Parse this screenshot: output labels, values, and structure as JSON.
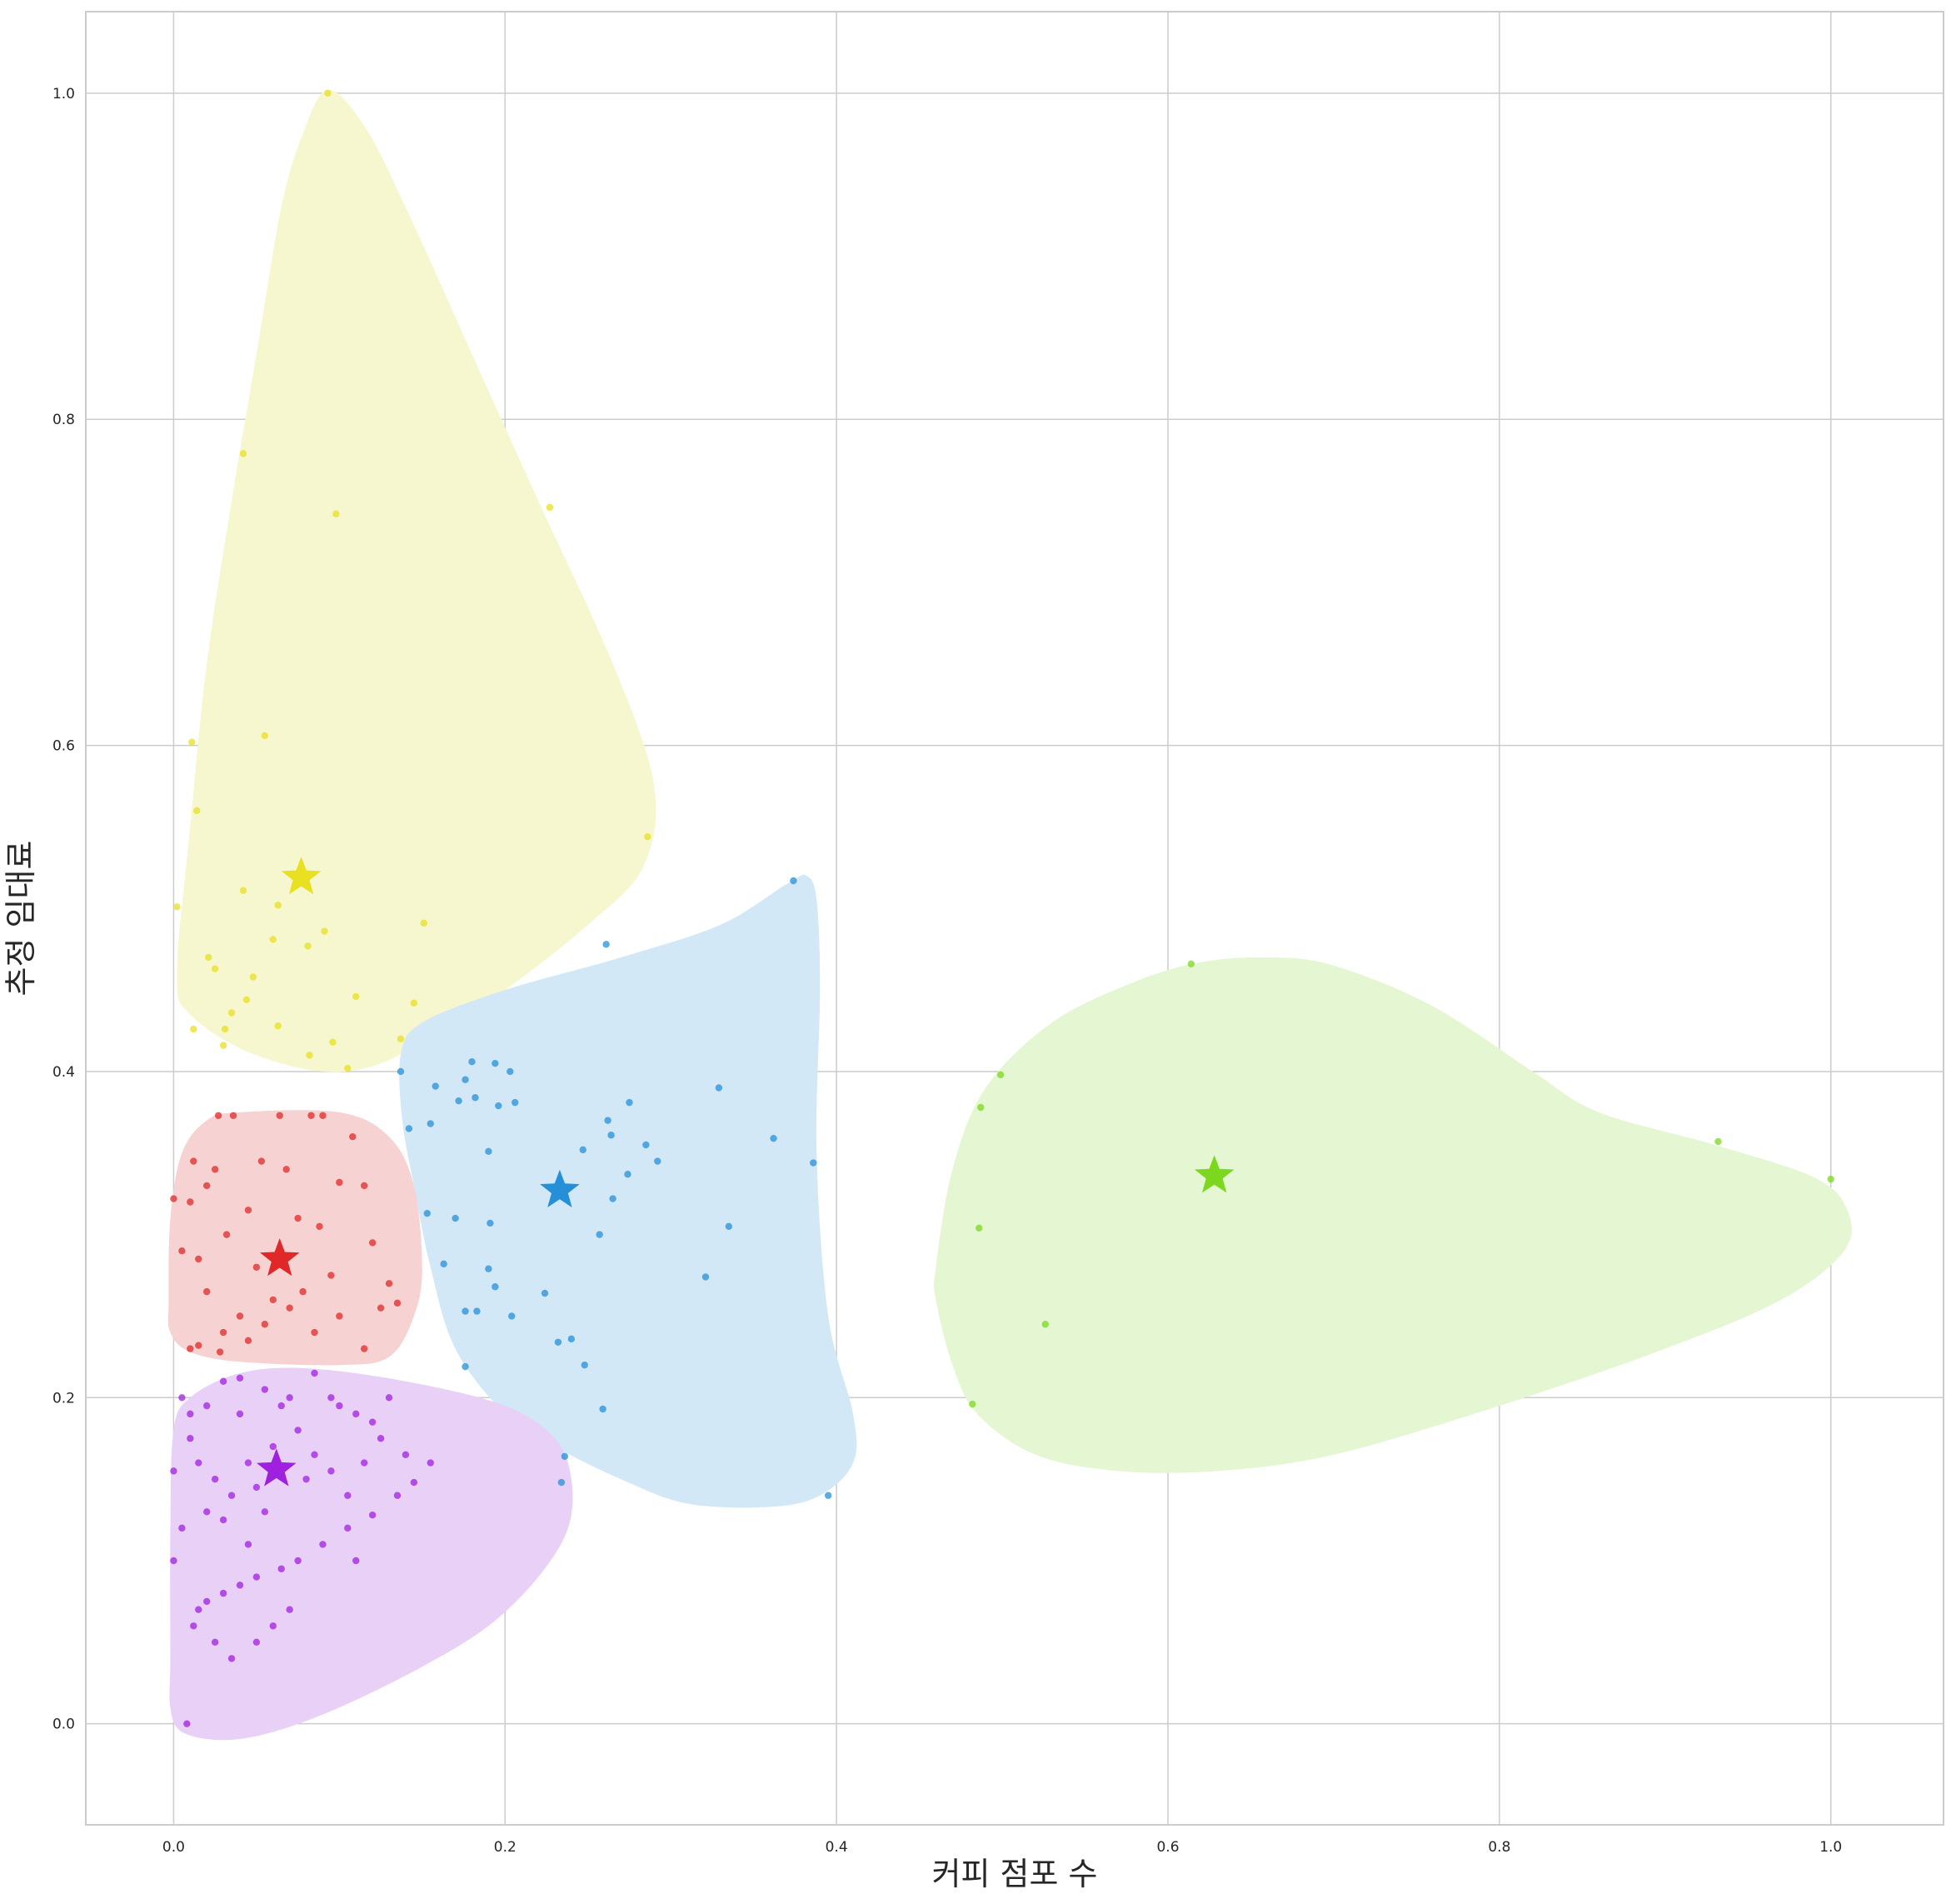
{
  "chart_data": {
    "type": "scatter",
    "title": "",
    "xlabel": "커피 점포 수",
    "ylabel": "추정 임대료",
    "xlim": [
      -0.053,
      1.068
    ],
    "ylim": [
      -0.062,
      1.05
    ],
    "x_ticks": [
      0.0,
      0.2,
      0.4,
      0.6,
      0.8,
      1.0
    ],
    "y_ticks": [
      0.0,
      0.2,
      0.4,
      0.6,
      0.8,
      1.0
    ],
    "x_tick_labels": [
      "0.0",
      "0.2",
      "0.4",
      "0.6",
      "0.8",
      "1.0"
    ],
    "y_tick_labels": [
      "0.0",
      "0.2",
      "0.4",
      "0.6",
      "0.8",
      "1.0"
    ],
    "grid": true,
    "legend": "none",
    "clusters": [
      {
        "color": "#e8e020",
        "fill": "#f6f7ce",
        "centroid": [
          0.077,
          0.519
        ],
        "hull": [
          [
            0.002,
            0.46
          ],
          [
            0.01,
            0.55
          ],
          [
            0.02,
            0.65
          ],
          [
            0.035,
            0.75
          ],
          [
            0.05,
            0.84
          ],
          [
            0.065,
            0.93
          ],
          [
            0.078,
            0.975
          ],
          [
            0.093,
            1.002
          ],
          [
            0.115,
            0.98
          ],
          [
            0.14,
            0.93
          ],
          [
            0.18,
            0.84
          ],
          [
            0.22,
            0.75
          ],
          [
            0.265,
            0.65
          ],
          [
            0.29,
            0.575
          ],
          [
            0.283,
            0.525
          ],
          [
            0.25,
            0.49
          ],
          [
            0.2,
            0.45
          ],
          [
            0.16,
            0.425
          ],
          [
            0.125,
            0.405
          ],
          [
            0.09,
            0.4
          ],
          [
            0.045,
            0.412
          ],
          [
            0.01,
            0.435
          ]
        ],
        "points": [
          [
            0.093,
            1.0
          ],
          [
            0.042,
            0.779
          ],
          [
            0.098,
            0.742
          ],
          [
            0.227,
            0.746
          ],
          [
            0.011,
            0.602
          ],
          [
            0.055,
            0.606
          ],
          [
            0.014,
            0.56
          ],
          [
            0.286,
            0.544
          ],
          [
            0.002,
            0.501
          ],
          [
            0.042,
            0.511
          ],
          [
            0.063,
            0.502
          ],
          [
            0.021,
            0.47
          ],
          [
            0.06,
            0.481
          ],
          [
            0.081,
            0.477
          ],
          [
            0.091,
            0.486
          ],
          [
            0.151,
            0.491
          ],
          [
            0.025,
            0.463
          ],
          [
            0.048,
            0.458
          ],
          [
            0.035,
            0.436
          ],
          [
            0.044,
            0.444
          ],
          [
            0.11,
            0.446
          ],
          [
            0.145,
            0.442
          ],
          [
            0.012,
            0.426
          ],
          [
            0.031,
            0.426
          ],
          [
            0.063,
            0.428
          ],
          [
            0.03,
            0.416
          ],
          [
            0.096,
            0.418
          ],
          [
            0.137,
            0.42
          ],
          [
            0.082,
            0.41
          ],
          [
            0.105,
            0.402
          ]
        ]
      },
      {
        "color": "#2590d8",
        "fill": "#d2e8f6",
        "centroid": [
          0.233,
          0.327
        ],
        "hull": [
          [
            0.137,
            0.41
          ],
          [
            0.15,
            0.43
          ],
          [
            0.2,
            0.45
          ],
          [
            0.27,
            0.47
          ],
          [
            0.33,
            0.49
          ],
          [
            0.37,
            0.515
          ],
          [
            0.382,
            0.52
          ],
          [
            0.388,
            0.505
          ],
          [
            0.39,
            0.45
          ],
          [
            0.388,
            0.35
          ],
          [
            0.395,
            0.25
          ],
          [
            0.41,
            0.19
          ],
          [
            0.41,
            0.16
          ],
          [
            0.39,
            0.14
          ],
          [
            0.36,
            0.133
          ],
          [
            0.31,
            0.135
          ],
          [
            0.27,
            0.15
          ],
          [
            0.23,
            0.17
          ],
          [
            0.2,
            0.19
          ],
          [
            0.17,
            0.23
          ],
          [
            0.155,
            0.28
          ],
          [
            0.145,
            0.33
          ],
          [
            0.138,
            0.37
          ]
        ],
        "points": [
          [
            0.374,
            0.517
          ],
          [
            0.261,
            0.478
          ],
          [
            0.137,
            0.4
          ],
          [
            0.18,
            0.406
          ],
          [
            0.194,
            0.405
          ],
          [
            0.203,
            0.4
          ],
          [
            0.176,
            0.395
          ],
          [
            0.158,
            0.391
          ],
          [
            0.329,
            0.39
          ],
          [
            0.172,
            0.382
          ],
          [
            0.182,
            0.384
          ],
          [
            0.196,
            0.379
          ],
          [
            0.206,
            0.381
          ],
          [
            0.275,
            0.381
          ],
          [
            0.142,
            0.365
          ],
          [
            0.155,
            0.368
          ],
          [
            0.262,
            0.37
          ],
          [
            0.264,
            0.361
          ],
          [
            0.362,
            0.359
          ],
          [
            0.247,
            0.352
          ],
          [
            0.19,
            0.351
          ],
          [
            0.285,
            0.355
          ],
          [
            0.292,
            0.345
          ],
          [
            0.386,
            0.344
          ],
          [
            0.274,
            0.337
          ],
          [
            0.265,
            0.322
          ],
          [
            0.153,
            0.313
          ],
          [
            0.17,
            0.31
          ],
          [
            0.191,
            0.307
          ],
          [
            0.335,
            0.305
          ],
          [
            0.257,
            0.3
          ],
          [
            0.163,
            0.282
          ],
          [
            0.19,
            0.279
          ],
          [
            0.321,
            0.274
          ],
          [
            0.194,
            0.268
          ],
          [
            0.224,
            0.264
          ],
          [
            0.176,
            0.253
          ],
          [
            0.183,
            0.253
          ],
          [
            0.204,
            0.25
          ],
          [
            0.232,
            0.234
          ],
          [
            0.24,
            0.236
          ],
          [
            0.248,
            0.22
          ],
          [
            0.176,
            0.219
          ],
          [
            0.259,
            0.193
          ],
          [
            0.236,
            0.164
          ],
          [
            0.234,
            0.148
          ],
          [
            0.395,
            0.14
          ]
        ]
      },
      {
        "color": "#7bd81e",
        "fill": "#e4f7d2",
        "centroid": [
          0.628,
          0.336
        ],
        "hull": [
          [
            0.46,
            0.28
          ],
          [
            0.47,
            0.34
          ],
          [
            0.49,
            0.39
          ],
          [
            0.53,
            0.43
          ],
          [
            0.58,
            0.455
          ],
          [
            0.62,
            0.467
          ],
          [
            0.66,
            0.47
          ],
          [
            0.7,
            0.465
          ],
          [
            0.76,
            0.44
          ],
          [
            0.82,
            0.4
          ],
          [
            0.86,
            0.375
          ],
          [
            0.93,
            0.355
          ],
          [
            0.99,
            0.335
          ],
          [
            1.01,
            0.315
          ],
          [
            1.008,
            0.29
          ],
          [
            0.97,
            0.26
          ],
          [
            0.9,
            0.23
          ],
          [
            0.8,
            0.195
          ],
          [
            0.7,
            0.165
          ],
          [
            0.63,
            0.155
          ],
          [
            0.57,
            0.155
          ],
          [
            0.52,
            0.165
          ],
          [
            0.485,
            0.19
          ],
          [
            0.47,
            0.22
          ],
          [
            0.46,
            0.26
          ]
        ],
        "points": [
          [
            0.614,
            0.466
          ],
          [
            0.499,
            0.398
          ],
          [
            0.487,
            0.378
          ],
          [
            0.932,
            0.357
          ],
          [
            1.0,
            0.334
          ],
          [
            0.486,
            0.304
          ],
          [
            0.526,
            0.245
          ],
          [
            0.482,
            0.196
          ]
        ]
      },
      {
        "color": "#e02828",
        "fill": "#f6d2d2",
        "centroid": [
          0.064,
          0.285
        ],
        "hull": [
          [
            -0.003,
            0.26
          ],
          [
            -0.002,
            0.31
          ],
          [
            0.005,
            0.35
          ],
          [
            0.02,
            0.37
          ],
          [
            0.04,
            0.375
          ],
          [
            0.1,
            0.375
          ],
          [
            0.13,
            0.36
          ],
          [
            0.145,
            0.33
          ],
          [
            0.15,
            0.28
          ],
          [
            0.145,
            0.25
          ],
          [
            0.13,
            0.225
          ],
          [
            0.1,
            0.22
          ],
          [
            0.04,
            0.222
          ],
          [
            0.01,
            0.228
          ],
          [
            -0.002,
            0.24
          ]
        ],
        "points": [
          [
            0.027,
            0.373
          ],
          [
            0.064,
            0.373
          ],
          [
            0.083,
            0.373
          ],
          [
            0.09,
            0.373
          ],
          [
            0.036,
            0.373
          ],
          [
            0.108,
            0.36
          ],
          [
            0.1,
            0.332
          ],
          [
            0.012,
            0.345
          ],
          [
            0.053,
            0.345
          ],
          [
            0.068,
            0.34
          ],
          [
            0.025,
            0.34
          ],
          [
            0.02,
            0.33
          ],
          [
            0.115,
            0.33
          ],
          [
            0.01,
            0.32
          ],
          [
            0.0,
            0.322
          ],
          [
            0.045,
            0.315
          ],
          [
            0.075,
            0.31
          ],
          [
            0.088,
            0.305
          ],
          [
            0.032,
            0.3
          ],
          [
            0.12,
            0.295
          ],
          [
            0.005,
            0.29
          ],
          [
            0.015,
            0.285
          ],
          [
            0.05,
            0.28
          ],
          [
            0.095,
            0.275
          ],
          [
            0.13,
            0.27
          ],
          [
            0.02,
            0.265
          ],
          [
            0.06,
            0.26
          ],
          [
            0.07,
            0.255
          ],
          [
            0.04,
            0.25
          ],
          [
            0.1,
            0.25
          ],
          [
            0.125,
            0.255
          ],
          [
            0.085,
            0.24
          ],
          [
            0.03,
            0.24
          ],
          [
            0.015,
            0.232
          ],
          [
            0.045,
            0.235
          ],
          [
            0.115,
            0.23
          ],
          [
            0.01,
            0.23
          ],
          [
            0.055,
            0.245
          ],
          [
            0.078,
            0.265
          ],
          [
            0.135,
            0.258
          ],
          [
            0.028,
            0.228
          ]
        ]
      },
      {
        "color": "#a020e0",
        "fill": "#e9d0f6",
        "centroid": [
          0.062,
          0.156
        ],
        "hull": [
          [
            -0.002,
            0.04
          ],
          [
            -0.002,
            0.12
          ],
          [
            0.0,
            0.18
          ],
          [
            0.01,
            0.2
          ],
          [
            0.04,
            0.215
          ],
          [
            0.08,
            0.218
          ],
          [
            0.14,
            0.21
          ],
          [
            0.2,
            0.195
          ],
          [
            0.23,
            0.175
          ],
          [
            0.24,
            0.15
          ],
          [
            0.238,
            0.12
          ],
          [
            0.22,
            0.09
          ],
          [
            0.19,
            0.06
          ],
          [
            0.15,
            0.035
          ],
          [
            0.1,
            0.01
          ],
          [
            0.06,
            -0.005
          ],
          [
            0.03,
            -0.01
          ],
          [
            0.005,
            -0.005
          ],
          [
            -0.002,
            0.01
          ]
        ],
        "points": [
          [
            0.008,
            0.0
          ],
          [
            0.0,
            0.155
          ],
          [
            0.005,
            0.2
          ],
          [
            0.01,
            0.19
          ],
          [
            0.02,
            0.195
          ],
          [
            0.03,
            0.21
          ],
          [
            0.04,
            0.212
          ],
          [
            0.055,
            0.205
          ],
          [
            0.07,
            0.2
          ],
          [
            0.085,
            0.215
          ],
          [
            0.095,
            0.2
          ],
          [
            0.1,
            0.195
          ],
          [
            0.11,
            0.19
          ],
          [
            0.12,
            0.185
          ],
          [
            0.125,
            0.175
          ],
          [
            0.14,
            0.165
          ],
          [
            0.155,
            0.16
          ],
          [
            0.145,
            0.148
          ],
          [
            0.135,
            0.14
          ],
          [
            0.12,
            0.128
          ],
          [
            0.105,
            0.12
          ],
          [
            0.09,
            0.11
          ],
          [
            0.075,
            0.1
          ],
          [
            0.065,
            0.095
          ],
          [
            0.05,
            0.09
          ],
          [
            0.04,
            0.085
          ],
          [
            0.03,
            0.08
          ],
          [
            0.02,
            0.075
          ],
          [
            0.015,
            0.07
          ],
          [
            0.012,
            0.06
          ],
          [
            0.025,
            0.05
          ],
          [
            0.035,
            0.04
          ],
          [
            0.05,
            0.05
          ],
          [
            0.06,
            0.06
          ],
          [
            0.07,
            0.07
          ],
          [
            0.045,
            0.11
          ],
          [
            0.055,
            0.13
          ],
          [
            0.035,
            0.14
          ],
          [
            0.025,
            0.15
          ],
          [
            0.015,
            0.16
          ],
          [
            0.06,
            0.17
          ],
          [
            0.075,
            0.18
          ],
          [
            0.085,
            0.165
          ],
          [
            0.095,
            0.155
          ],
          [
            0.105,
            0.14
          ],
          [
            0.045,
            0.16
          ],
          [
            0.03,
            0.125
          ],
          [
            0.02,
            0.13
          ],
          [
            0.005,
            0.12
          ],
          [
            0.0,
            0.1
          ],
          [
            0.04,
            0.19
          ],
          [
            0.065,
            0.195
          ],
          [
            0.08,
            0.15
          ],
          [
            0.05,
            0.145
          ],
          [
            0.11,
            0.1
          ],
          [
            0.01,
            0.175
          ],
          [
            0.13,
            0.2
          ],
          [
            0.115,
            0.16
          ]
        ]
      }
    ]
  }
}
